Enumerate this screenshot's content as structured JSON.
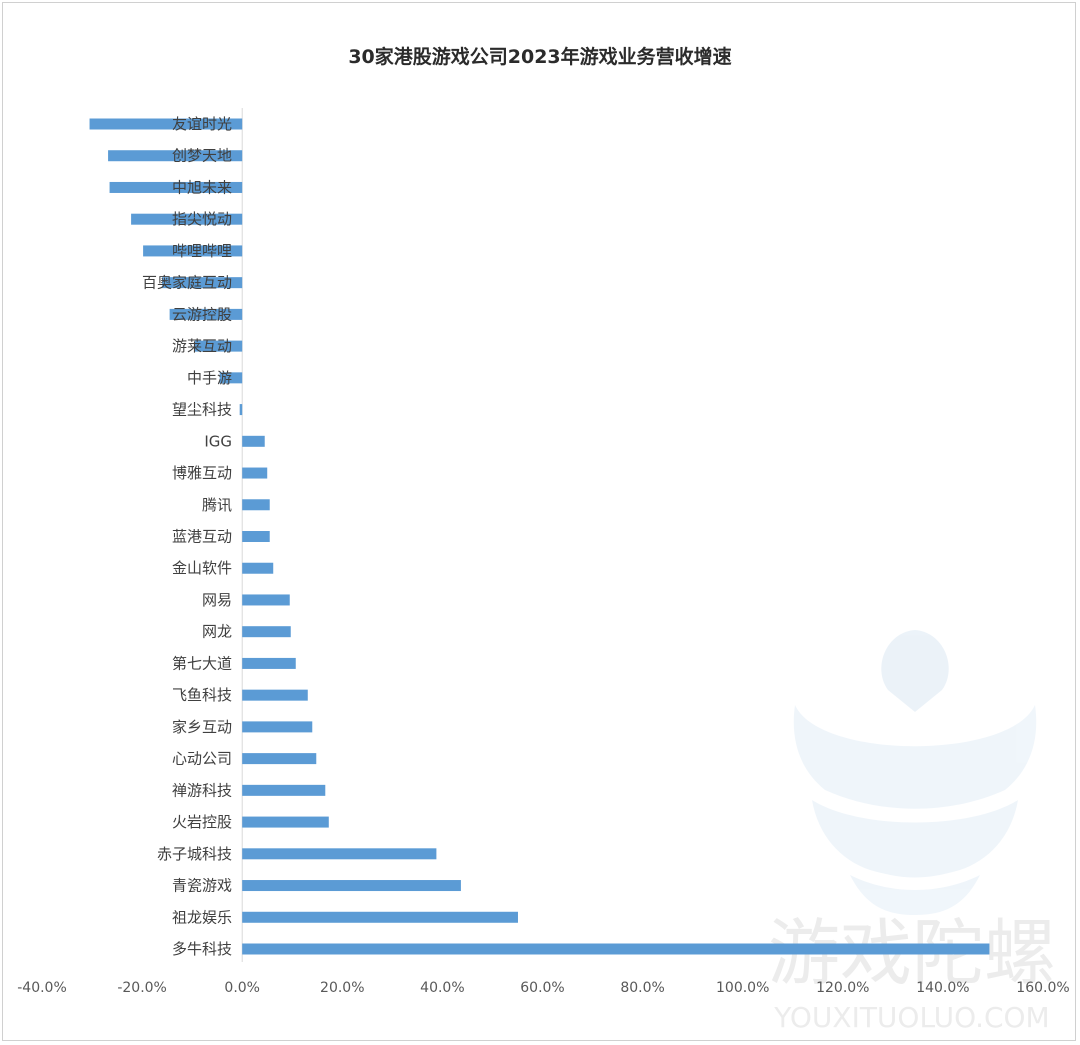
{
  "chart_data": {
    "type": "bar",
    "orientation": "horizontal",
    "title": "30家港股游戏公司2023年游戏业务营收增速",
    "categories": [
      "友谊时光",
      "创梦天地",
      "中旭未来",
      "指尖悦动",
      "哔哩哔哩",
      "百奥家庭互动",
      "云游控股",
      "游莱互动",
      "中手游",
      "望尘科技",
      "IGG",
      "博雅互动",
      "腾讯",
      "蓝港互动",
      "金山软件",
      "网易",
      "网龙",
      "第七大道",
      "飞鱼科技",
      "家乡互动",
      "心动公司",
      "禅游科技",
      "火岩控股",
      "赤子城科技",
      "青瓷游戏",
      "祖龙娱乐",
      "多牛科技"
    ],
    "values": [
      -30.5,
      -26.8,
      -26.5,
      -22.2,
      -19.8,
      -16.0,
      -14.5,
      -9.5,
      -4.5,
      -0.5,
      4.5,
      5.0,
      5.5,
      5.5,
      6.2,
      9.5,
      9.7,
      10.7,
      13.1,
      14.0,
      14.8,
      16.6,
      17.3,
      38.8,
      43.7,
      55.1,
      149.3
    ],
    "xlim": [
      -40,
      160
    ],
    "xticks": [
      "-40.0%",
      "-20.0%",
      "0.0%",
      "20.0%",
      "40.0%",
      "60.0%",
      "80.0%",
      "100.0%",
      "120.0%",
      "140.0%",
      "160.0%"
    ],
    "bar_color": "#5b9bd5",
    "grid": false
  },
  "watermark": {
    "text": "游戏陀螺",
    "subtext": "YOUXITUOLUO.COM"
  }
}
